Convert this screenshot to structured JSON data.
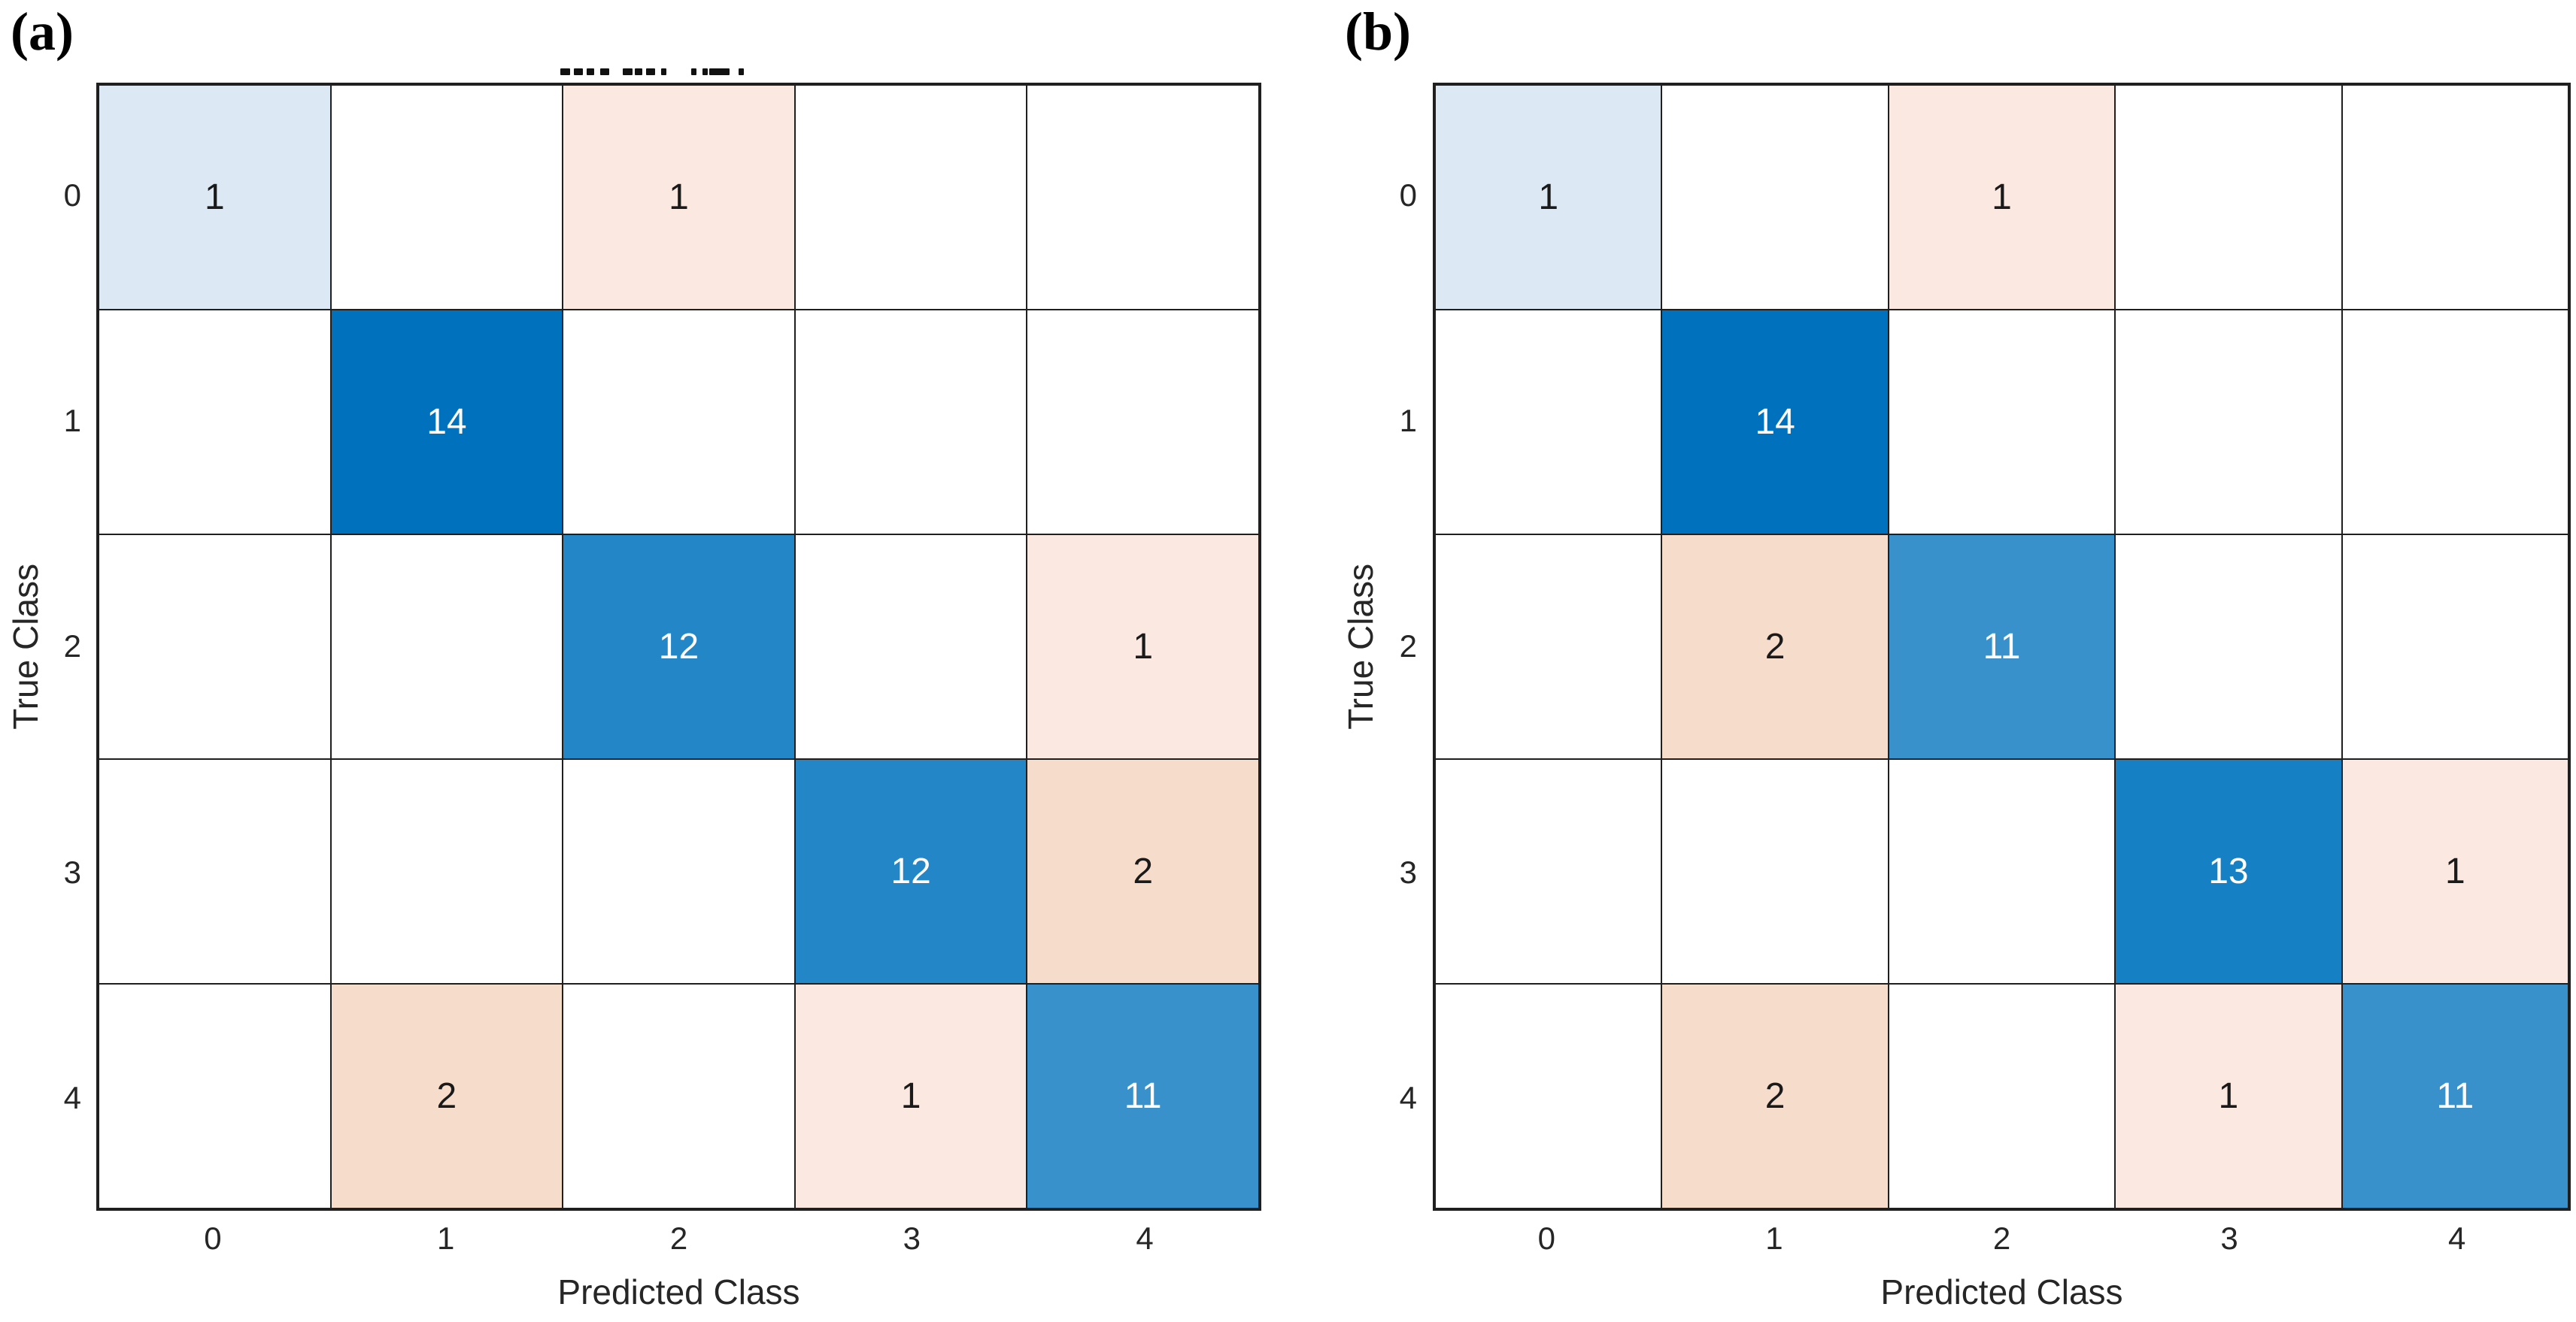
{
  "figure": {
    "panels": [
      {
        "label": "(a)",
        "has_clipped_title": true,
        "xlabel": "Predicted Class",
        "ylabel": "True Class"
      },
      {
        "label": "(b)",
        "has_clipped_title": false,
        "xlabel": "Predicted Class",
        "ylabel": "True Class"
      }
    ]
  },
  "chart_data": [
    {
      "type": "heatmap",
      "subtype": "confusion-matrix",
      "panel": "(a)",
      "xlabel": "Predicted Class",
      "ylabel": "True Class",
      "x_categories": [
        "0",
        "1",
        "2",
        "3",
        "4"
      ],
      "y_categories": [
        "0",
        "1",
        "2",
        "3",
        "4"
      ],
      "matrix": [
        [
          1,
          0,
          1,
          0,
          0
        ],
        [
          0,
          14,
          0,
          0,
          0
        ],
        [
          0,
          0,
          12,
          0,
          1
        ],
        [
          0,
          0,
          0,
          12,
          2
        ],
        [
          0,
          2,
          0,
          1,
          11
        ]
      ],
      "legend": "none",
      "grid": true
    },
    {
      "type": "heatmap",
      "subtype": "confusion-matrix",
      "panel": "(b)",
      "xlabel": "Predicted Class",
      "ylabel": "True Class",
      "x_categories": [
        "0",
        "1",
        "2",
        "3",
        "4"
      ],
      "y_categories": [
        "0",
        "1",
        "2",
        "3",
        "4"
      ],
      "matrix": [
        [
          1,
          0,
          1,
          0,
          0
        ],
        [
          0,
          14,
          0,
          0,
          0
        ],
        [
          0,
          2,
          11,
          0,
          0
        ],
        [
          0,
          0,
          0,
          13,
          1
        ],
        [
          0,
          2,
          0,
          1,
          11
        ]
      ],
      "legend": "none",
      "grid": true
    }
  ],
  "cell_colors": {
    "diagonal": {
      "1": "#dce9f5",
      "11": "#3991cb",
      "12": "#2386c7",
      "13": "#1580c4",
      "14": "#0072bd"
    },
    "off_diagonal": {
      "1": "#fbe9e1",
      "2": "#f6dccb"
    },
    "zero": "#ffffff",
    "value_text_light": "#ffffff",
    "value_text_dark": "#1a1a1a",
    "grid_line": "#1f1f1f"
  }
}
